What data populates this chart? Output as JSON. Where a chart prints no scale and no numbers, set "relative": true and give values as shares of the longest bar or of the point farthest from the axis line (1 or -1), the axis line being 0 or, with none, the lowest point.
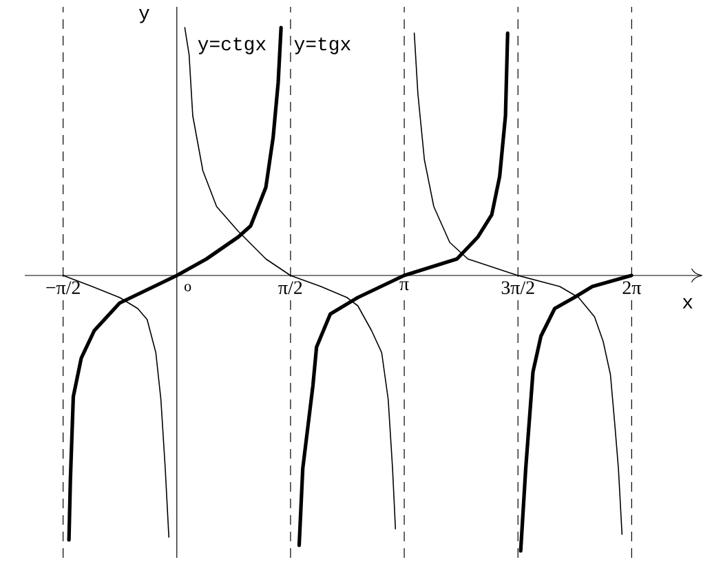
{
  "chart_data": {
    "type": "line",
    "relative": true,
    "grid": "x",
    "xlabel": "x",
    "ylabel": "y",
    "annotations": [
      "o"
    ],
    "xlim": [
      -2.1,
      7.26
    ],
    "xticks": [
      {
        "value": -1.5708,
        "label": "−π/2"
      },
      {
        "value": 1.5708,
        "label": "π/2"
      },
      {
        "value": 3.1416,
        "label": "π"
      },
      {
        "value": 4.7124,
        "label": "3π/2"
      },
      {
        "value": 6.2832,
        "label": "2π"
      }
    ],
    "series": [
      {
        "name": "y=tgx",
        "color": "#000000",
        "x": [
          -1.49,
          -1.47,
          -1.43,
          -1.32,
          -1.14,
          -0.79,
          0,
          0.41,
          0.85,
          1.02,
          1.23,
          1.33,
          1.4,
          1.44,
          1.57,
          1.69,
          1.74,
          1.88,
          1.93,
          2.12,
          2.31,
          2.5,
          3.14,
          3.87,
          4.16,
          4.35,
          4.46,
          4.54,
          4.57,
          4.71,
          4.75,
          4.82,
          4.92,
          5.03,
          5.22,
          5.49,
          5.74,
          6.28
        ],
        "values": [
          -0.96,
          -0.74,
          -0.44,
          -0.3,
          -0.2,
          -0.1,
          0,
          0.06,
          0.14,
          0.18,
          0.32,
          0.5,
          0.7,
          0.9,
          null,
          -0.98,
          -0.7,
          -0.4,
          -0.26,
          -0.14,
          -0.11,
          -0.08,
          0,
          0.06,
          0.14,
          0.22,
          0.36,
          0.58,
          0.88,
          null,
          -1.0,
          -0.7,
          -0.35,
          -0.22,
          -0.12,
          -0.08,
          -0.04,
          0
        ]
      },
      {
        "name": "y=ctgx",
        "color": "#000000",
        "x": [
          -1.57,
          -1.17,
          -0.79,
          -0.54,
          -0.41,
          -0.29,
          -0.22,
          -0.16,
          -0.11,
          0,
          0.11,
          0.17,
          0.22,
          0.36,
          0.55,
          0.85,
          1.23,
          1.57,
          1.99,
          2.35,
          2.5,
          2.69,
          2.83,
          2.92,
          2.98,
          3.02,
          3.14,
          3.28,
          3.33,
          3.42,
          3.55,
          3.77,
          4.02,
          4.71,
          5.29,
          5.55,
          5.77,
          5.89,
          5.99,
          6.05,
          6.1,
          6.15
        ],
        "values": [
          0,
          -0.04,
          -0.08,
          -0.12,
          -0.16,
          -0.28,
          -0.45,
          -0.7,
          -0.95,
          null,
          0.9,
          0.8,
          0.58,
          0.38,
          0.25,
          0.16,
          0.06,
          0,
          -0.04,
          -0.08,
          -0.11,
          -0.2,
          -0.28,
          -0.45,
          -0.7,
          -0.92,
          null,
          0.88,
          0.66,
          0.42,
          0.25,
          0.12,
          0.06,
          0,
          -0.04,
          -0.08,
          -0.15,
          -0.24,
          -0.36,
          -0.54,
          -0.7,
          -0.94
        ]
      }
    ]
  }
}
